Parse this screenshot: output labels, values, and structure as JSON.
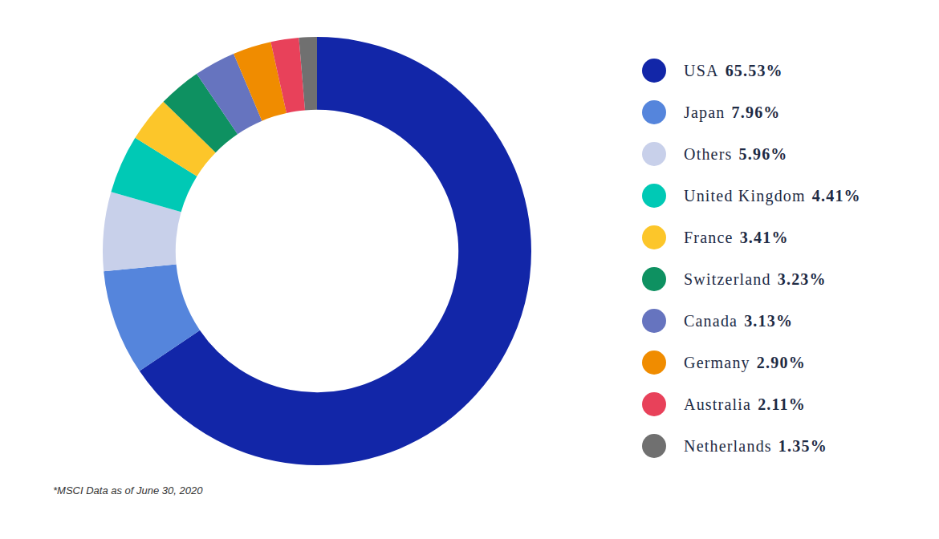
{
  "chart_data": {
    "type": "doughnut",
    "categories": [
      "USA",
      "Japan",
      "Others",
      "United Kingdom",
      "France",
      "Switzerland",
      "Canada",
      "Germany",
      "Australia",
      "Netherlands"
    ],
    "values": [
      65.53,
      7.96,
      5.96,
      4.41,
      3.41,
      3.23,
      3.13,
      2.9,
      2.11,
      1.35
    ],
    "value_labels": [
      "65.53%",
      "7.96%",
      "5.96%",
      "4.41%",
      "3.41%",
      "3.23%",
      "3.13%",
      "2.90%",
      "2.11%",
      "1.35%"
    ],
    "colors": [
      "#1226a8",
      "#5585dc",
      "#c8d0ea",
      "#00c9b5",
      "#fcc62a",
      "#0e9161",
      "#6674bf",
      "#f08c00",
      "#e8415a",
      "#707070"
    ],
    "legend": "right",
    "data_labels": false,
    "annotations": [
      "*MSCI Data as of June 30, 2020"
    ]
  }
}
